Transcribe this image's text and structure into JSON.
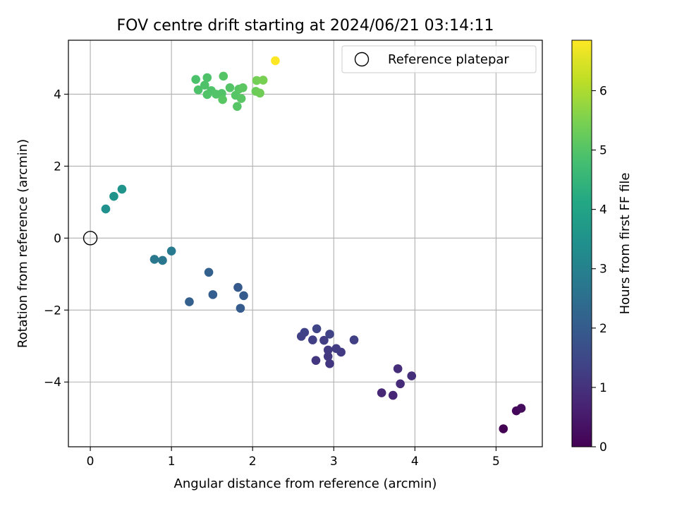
{
  "chart_data": {
    "type": "scatter",
    "title": "FOV centre drift starting at 2024/06/21 03:14:11",
    "xlabel": "Angular distance from reference (arcmin)",
    "ylabel": "Rotation from reference (arcmin)",
    "xlim": [
      -0.27,
      5.57
    ],
    "ylim": [
      -5.8,
      5.5
    ],
    "xticks": [
      0,
      1,
      2,
      3,
      4,
      5
    ],
    "yticks": [
      -4,
      -2,
      0,
      2,
      4
    ],
    "xtick_labels": [
      "0",
      "1",
      "2",
      "3",
      "4",
      "5"
    ],
    "ytick_labels": [
      "−4",
      "−2",
      "0",
      "2",
      "4"
    ],
    "grid": true,
    "legend": {
      "position": "top-right",
      "entries": [
        "Reference platepar"
      ]
    },
    "colorbar": {
      "label": "Hours from first FF file",
      "colormap": "viridis",
      "range": [
        0,
        6.85
      ],
      "ticks": [
        0,
        1,
        2,
        3,
        4,
        5,
        6
      ],
      "tick_labels": [
        "0",
        "1",
        "2",
        "3",
        "4",
        "5",
        "6"
      ]
    },
    "reference_point": {
      "name": "Reference platepar",
      "x": 0,
      "y": 0
    },
    "points": [
      {
        "x": 5.09,
        "y": -5.3,
        "t": 0.0
      },
      {
        "x": 5.25,
        "y": -4.8,
        "t": 0.12
      },
      {
        "x": 5.31,
        "y": -4.73,
        "t": 0.22
      },
      {
        "x": 3.73,
        "y": -4.37,
        "t": 0.75
      },
      {
        "x": 3.59,
        "y": -4.3,
        "t": 0.8
      },
      {
        "x": 3.82,
        "y": -4.05,
        "t": 0.85
      },
      {
        "x": 3.79,
        "y": -3.63,
        "t": 0.9
      },
      {
        "x": 3.96,
        "y": -3.83,
        "t": 0.95
      },
      {
        "x": 2.95,
        "y": -3.49,
        "t": 1.1
      },
      {
        "x": 2.78,
        "y": -3.4,
        "t": 1.12
      },
      {
        "x": 2.93,
        "y": -3.29,
        "t": 1.15
      },
      {
        "x": 3.09,
        "y": -3.17,
        "t": 1.18
      },
      {
        "x": 2.93,
        "y": -3.11,
        "t": 1.2
      },
      {
        "x": 3.03,
        "y": -3.07,
        "t": 1.23
      },
      {
        "x": 2.88,
        "y": -2.84,
        "t": 1.26
      },
      {
        "x": 2.74,
        "y": -2.83,
        "t": 1.28
      },
      {
        "x": 3.25,
        "y": -2.83,
        "t": 1.3
      },
      {
        "x": 2.6,
        "y": -2.73,
        "t": 1.33
      },
      {
        "x": 2.64,
        "y": -2.62,
        "t": 1.36
      },
      {
        "x": 2.95,
        "y": -2.67,
        "t": 1.39
      },
      {
        "x": 2.79,
        "y": -2.52,
        "t": 1.42
      },
      {
        "x": 1.85,
        "y": -1.95,
        "t": 2.0
      },
      {
        "x": 1.22,
        "y": -1.77,
        "t": 2.1
      },
      {
        "x": 1.51,
        "y": -1.57,
        "t": 2.05
      },
      {
        "x": 1.89,
        "y": -1.6,
        "t": 2.0
      },
      {
        "x": 1.82,
        "y": -1.37,
        "t": 1.95
      },
      {
        "x": 1.46,
        "y": -0.95,
        "t": 2.1
      },
      {
        "x": 0.79,
        "y": -0.59,
        "t": 2.75
      },
      {
        "x": 0.89,
        "y": -0.62,
        "t": 2.7
      },
      {
        "x": 1.0,
        "y": -0.36,
        "t": 2.8
      },
      {
        "x": 0.19,
        "y": 0.81,
        "t": 3.45
      },
      {
        "x": 0.29,
        "y": 1.16,
        "t": 3.5
      },
      {
        "x": 0.39,
        "y": 1.36,
        "t": 3.55
      },
      {
        "x": 1.3,
        "y": 4.41,
        "t": 4.9
      },
      {
        "x": 1.44,
        "y": 4.46,
        "t": 4.92
      },
      {
        "x": 1.33,
        "y": 4.12,
        "t": 4.93
      },
      {
        "x": 1.41,
        "y": 4.25,
        "t": 4.94
      },
      {
        "x": 1.49,
        "y": 4.1,
        "t": 4.95
      },
      {
        "x": 1.44,
        "y": 3.99,
        "t": 4.96
      },
      {
        "x": 1.55,
        "y": 4.0,
        "t": 4.97
      },
      {
        "x": 1.62,
        "y": 4.02,
        "t": 4.98
      },
      {
        "x": 1.64,
        "y": 4.5,
        "t": 5.0
      },
      {
        "x": 1.72,
        "y": 4.18,
        "t": 5.02
      },
      {
        "x": 1.79,
        "y": 3.97,
        "t": 5.03
      },
      {
        "x": 1.81,
        "y": 3.66,
        "t": 5.04
      },
      {
        "x": 1.83,
        "y": 4.14,
        "t": 5.05
      },
      {
        "x": 1.86,
        "y": 3.88,
        "t": 5.06
      },
      {
        "x": 1.63,
        "y": 3.85,
        "t": 5.07
      },
      {
        "x": 1.88,
        "y": 4.18,
        "t": 5.1
      },
      {
        "x": 2.04,
        "y": 4.08,
        "t": 5.3
      },
      {
        "x": 2.09,
        "y": 4.03,
        "t": 5.35
      },
      {
        "x": 2.05,
        "y": 4.38,
        "t": 5.4
      },
      {
        "x": 2.13,
        "y": 4.39,
        "t": 5.45
      },
      {
        "x": 2.28,
        "y": 4.93,
        "t": 6.85
      }
    ]
  }
}
